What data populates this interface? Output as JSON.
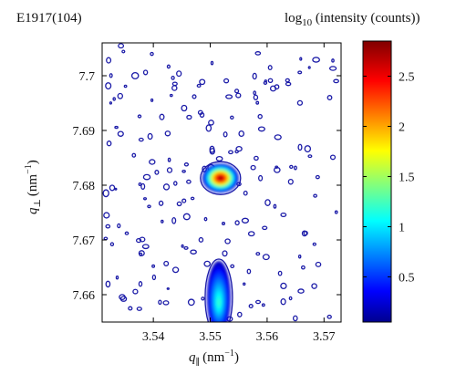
{
  "chart_data": {
    "type": "heatmap",
    "title": "E1917(104)",
    "xlabel": {
      "symbol": "q",
      "sub": "∥",
      "unit": "(nm",
      "exp": "−1",
      "close": ")"
    },
    "ylabel": {
      "symbol": "q",
      "sub": "⊥",
      "unit": "(nm",
      "exp": "−1",
      "close": ")"
    },
    "xlim": [
      3.531,
      3.573
    ],
    "ylim": [
      7.655,
      7.706
    ],
    "xticks": [
      3.54,
      3.55,
      3.56,
      3.57
    ],
    "yticks": [
      7.66,
      7.67,
      7.68,
      7.69,
      7.7
    ],
    "xtick_labels": [
      "3.54",
      "3.55",
      "3.56",
      "3.57"
    ],
    "ytick_labels": [
      "7.66",
      "7.67",
      "7.68",
      "7.69",
      "7.7"
    ],
    "colorbar": {
      "label": {
        "pre": "log",
        "sub": "10",
        "post": " (intensity (counts))"
      },
      "range": [
        0.05,
        2.85
      ],
      "ticks": [
        0.5,
        1,
        1.5,
        2,
        2.5
      ],
      "tick_labels": [
        "0.5",
        "1",
        "1.5",
        "2",
        "2.5"
      ],
      "colormap": "jet"
    },
    "peaks": [
      {
        "q_par": 3.5518,
        "q_perp": 7.6813,
        "log_intensity": 2.8
      },
      {
        "q_par": 3.5515,
        "q_perp": 7.6595,
        "log_intensity": 1.2
      }
    ],
    "contour_color": "#1c1ca8"
  }
}
